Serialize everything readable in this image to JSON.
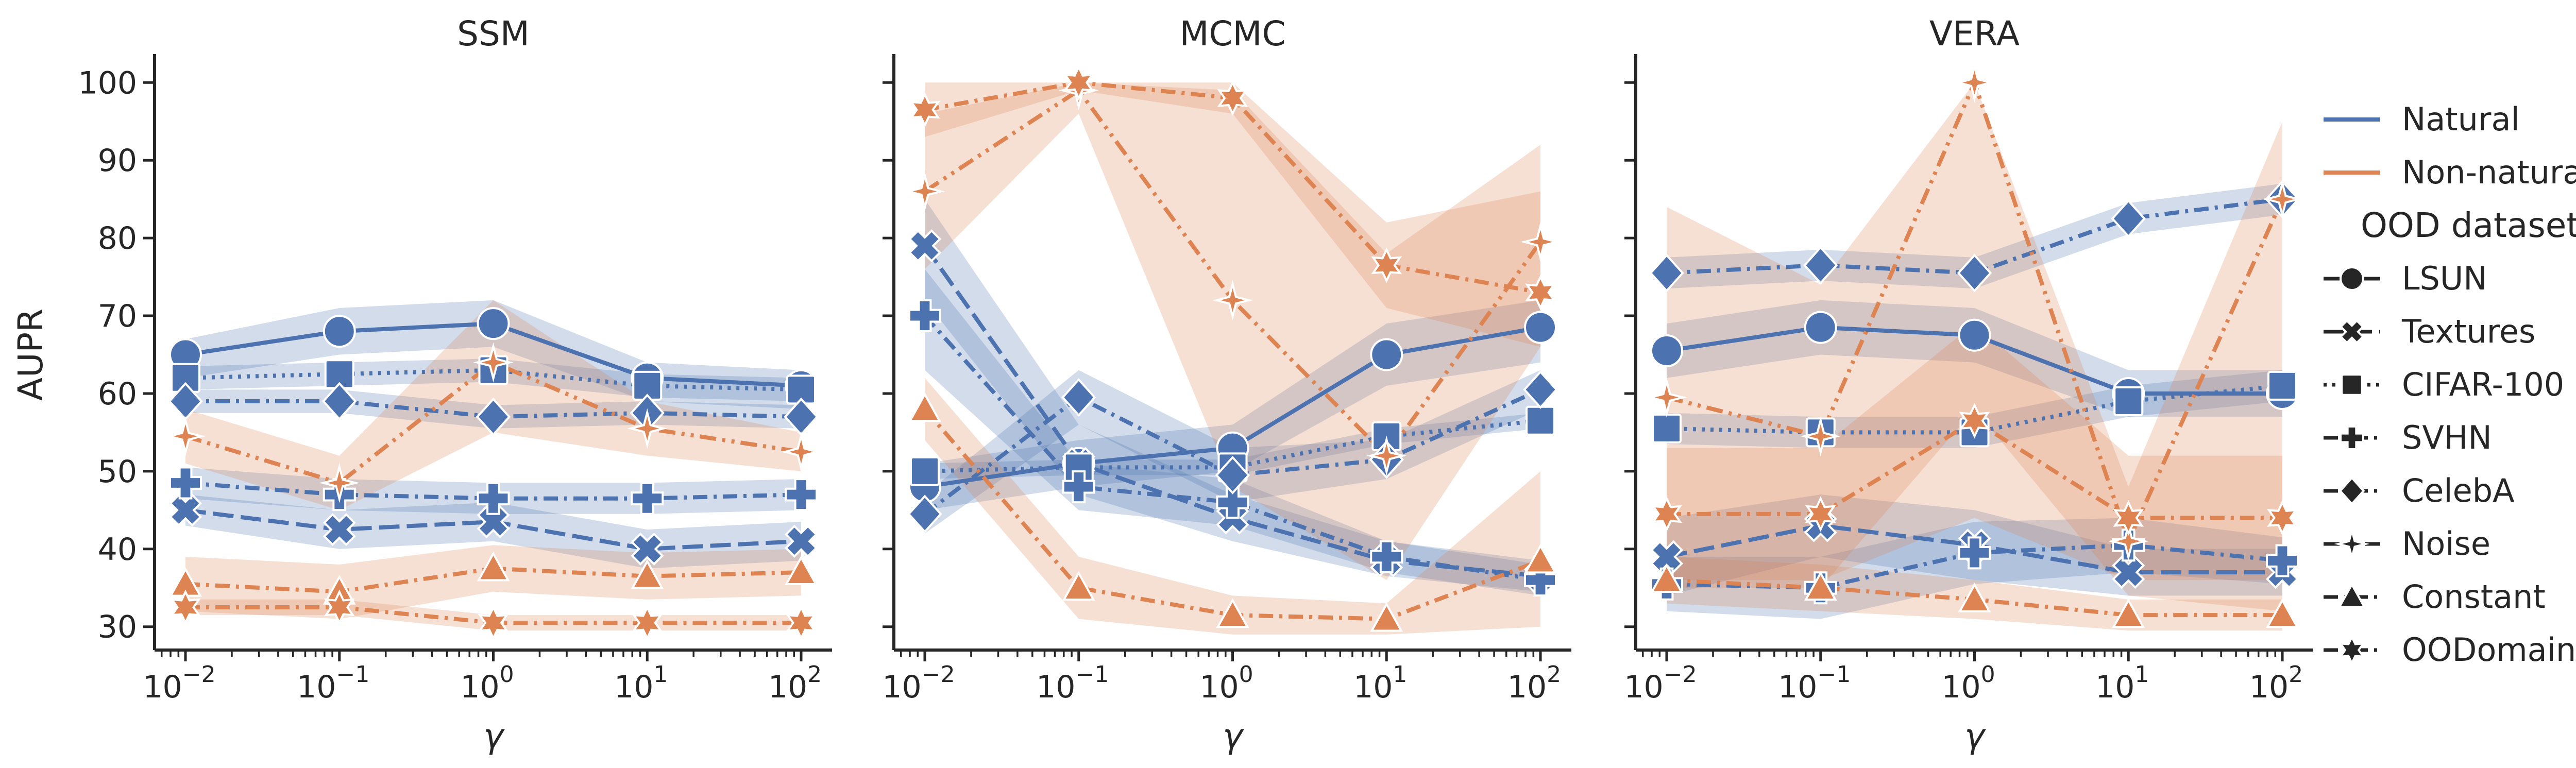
{
  "colors": {
    "Natural": "#4c72b0",
    "Non-natural": "#dd8452",
    "axis": "#262626"
  },
  "legend": {
    "hue_entries": [
      "Natural",
      "Non-natural"
    ],
    "title": "OOD dataset",
    "style_entries": [
      "LSUN",
      "Textures",
      "CIFAR-100",
      "SVHN",
      "CelebA",
      "Noise",
      "Constant",
      "OODomain"
    ]
  },
  "chart_data": [
    {
      "type": "line",
      "title": "SSM",
      "xlabel": "γ",
      "ylabel": "AUPR",
      "xscale": "log",
      "x": [
        0.01,
        0.1,
        1,
        10,
        100
      ],
      "x_tick_labels": [
        {
          "base": "10",
          "exp": "−2"
        },
        {
          "base": "10",
          "exp": "−1"
        },
        {
          "base": "10",
          "exp": "0"
        },
        {
          "base": "10",
          "exp": "1"
        },
        {
          "base": "10",
          "exp": "2"
        }
      ],
      "ylim": [
        27,
        103
      ],
      "y_ticks": [
        30,
        40,
        50,
        60,
        70,
        80,
        90,
        100
      ],
      "series": [
        {
          "name": "LSUN",
          "hue": "Natural",
          "values": [
            65,
            68,
            69,
            62,
            61
          ],
          "lower": [
            62,
            65,
            66,
            59,
            58
          ],
          "upper": [
            67,
            71,
            72,
            64,
            63
          ]
        },
        {
          "name": "Textures",
          "hue": "Natural",
          "values": [
            45,
            42.5,
            43.5,
            40,
            41
          ],
          "lower": [
            43,
            40,
            41,
            37.5,
            38.5
          ],
          "upper": [
            47,
            45,
            46,
            42.5,
            43.5
          ]
        },
        {
          "name": "CIFAR-100",
          "hue": "Natural",
          "values": [
            62,
            62.5,
            63,
            61,
            60.5
          ],
          "lower": [
            60.5,
            61,
            61.5,
            59.5,
            59
          ],
          "upper": [
            63.5,
            64,
            64.5,
            62.5,
            62
          ]
        },
        {
          "name": "SVHN",
          "hue": "Natural",
          "values": [
            48.5,
            47,
            46.5,
            46.5,
            47
          ],
          "lower": [
            46.5,
            45,
            44.5,
            44.5,
            45
          ],
          "upper": [
            50.5,
            49,
            48.5,
            48.5,
            49
          ]
        },
        {
          "name": "CelebA",
          "hue": "Natural",
          "values": [
            59,
            59,
            57,
            57.5,
            57
          ],
          "lower": [
            57.5,
            57.5,
            55.5,
            56,
            55.5
          ],
          "upper": [
            60.5,
            60.5,
            58.5,
            59,
            58.5
          ]
        },
        {
          "name": "Noise",
          "hue": "Non-natural",
          "values": [
            54.5,
            48.5,
            64,
            55.5,
            52.5
          ],
          "lower": [
            51,
            45,
            55,
            52,
            50
          ],
          "upper": [
            58,
            52,
            72,
            59,
            55
          ]
        },
        {
          "name": "Constant",
          "hue": "Non-natural",
          "values": [
            35.5,
            34.5,
            37.5,
            36.5,
            37
          ],
          "lower": [
            32,
            31,
            34.5,
            33.5,
            34
          ],
          "upper": [
            39,
            38,
            40.5,
            39.5,
            40
          ]
        },
        {
          "name": "OODomain",
          "hue": "Non-natural",
          "values": [
            32.5,
            32.5,
            30.5,
            30.5,
            30.5
          ],
          "lower": [
            31.5,
            31.5,
            29.5,
            29.5,
            29.5
          ],
          "upper": [
            33.5,
            33.5,
            31.5,
            31.5,
            31.5
          ]
        }
      ]
    },
    {
      "type": "line",
      "title": "MCMC",
      "xlabel": "γ",
      "ylabel": "",
      "xscale": "log",
      "x": [
        0.01,
        0.1,
        1,
        10,
        100
      ],
      "x_tick_labels": [
        {
          "base": "10",
          "exp": "−2"
        },
        {
          "base": "10",
          "exp": "−1"
        },
        {
          "base": "10",
          "exp": "0"
        },
        {
          "base": "10",
          "exp": "1"
        },
        {
          "base": "10",
          "exp": "2"
        }
      ],
      "ylim": [
        27,
        103
      ],
      "y_ticks": [
        30,
        40,
        50,
        60,
        70,
        80,
        90,
        100
      ],
      "series": [
        {
          "name": "LSUN",
          "hue": "Natural",
          "values": [
            48,
            51,
            53,
            65,
            68.5
          ],
          "lower": [
            45,
            48,
            50,
            61,
            64
          ],
          "upper": [
            51,
            54,
            56,
            69,
            72
          ]
        },
        {
          "name": "Textures",
          "hue": "Natural",
          "values": [
            79,
            51,
            44,
            38.5,
            36.5
          ],
          "lower": [
            72,
            47,
            41,
            36.5,
            34.5
          ],
          "upper": [
            85,
            56,
            47,
            41,
            38.5
          ]
        },
        {
          "name": "CIFAR-100",
          "hue": "Natural",
          "values": [
            50,
            50.5,
            50.5,
            54.5,
            56.5
          ],
          "lower": [
            49,
            49.5,
            49.5,
            53.5,
            55.5
          ],
          "upper": [
            51,
            51.5,
            51.5,
            55.5,
            57.5
          ]
        },
        {
          "name": "SVHN",
          "hue": "Natural",
          "values": [
            70,
            48,
            46,
            39,
            36
          ],
          "lower": [
            63,
            45,
            43,
            37,
            34
          ],
          "upper": [
            76,
            51,
            49,
            41,
            38
          ]
        },
        {
          "name": "CelebA",
          "hue": "Natural",
          "values": [
            44.5,
            59.5,
            49.5,
            51.5,
            60.5
          ],
          "lower": [
            42,
            56,
            46,
            49,
            58
          ],
          "upper": [
            47,
            63,
            53,
            54,
            63
          ]
        },
        {
          "name": "Noise",
          "hue": "Non-natural",
          "values": [
            86,
            99,
            72,
            52,
            79.5
          ],
          "lower": [
            76,
            96,
            48,
            36,
            66
          ],
          "upper": [
            96,
            100,
            99,
            78,
            92
          ]
        },
        {
          "name": "Constant",
          "hue": "Non-natural",
          "values": [
            58,
            35,
            31.5,
            31,
            38.5
          ],
          "lower": [
            54,
            31,
            29,
            29,
            30
          ],
          "upper": [
            62,
            39,
            34,
            33,
            50
          ]
        },
        {
          "name": "OODomain",
          "hue": "Non-natural",
          "values": [
            96.5,
            100,
            98,
            76.5,
            73
          ],
          "lower": [
            93,
            99,
            96,
            71,
            66
          ],
          "upper": [
            100,
            100,
            100,
            82,
            86
          ]
        }
      ]
    },
    {
      "type": "line",
      "title": "VERA",
      "xlabel": "γ",
      "ylabel": "",
      "xscale": "log",
      "x": [
        0.01,
        0.1,
        1,
        10,
        100
      ],
      "x_tick_labels": [
        {
          "base": "10",
          "exp": "−2"
        },
        {
          "base": "10",
          "exp": "−1"
        },
        {
          "base": "10",
          "exp": "0"
        },
        {
          "base": "10",
          "exp": "1"
        },
        {
          "base": "10",
          "exp": "2"
        }
      ],
      "ylim": [
        27,
        103
      ],
      "y_ticks": [
        30,
        40,
        50,
        60,
        70,
        80,
        90,
        100
      ],
      "series": [
        {
          "name": "LSUN",
          "hue": "Natural",
          "values": [
            65.5,
            68.5,
            67.5,
            60,
            60
          ],
          "lower": [
            62,
            65,
            64,
            57,
            57
          ],
          "upper": [
            69,
            72,
            71,
            63,
            63
          ]
        },
        {
          "name": "Textures",
          "hue": "Natural",
          "values": [
            39,
            43,
            40.5,
            37,
            37
          ],
          "lower": [
            34,
            39,
            36,
            34,
            34
          ],
          "upper": [
            44,
            47,
            45,
            40,
            40
          ]
        },
        {
          "name": "CIFAR-100",
          "hue": "Natural",
          "values": [
            55.5,
            55,
            55,
            59,
            61
          ],
          "lower": [
            53.5,
            53,
            53,
            57,
            59
          ],
          "upper": [
            57.5,
            57,
            57,
            61,
            63
          ]
        },
        {
          "name": "SVHN",
          "hue": "Natural",
          "values": [
            35.5,
            35,
            39.5,
            40.5,
            38.5
          ],
          "lower": [
            32,
            31,
            35.5,
            37,
            35.5
          ],
          "upper": [
            39,
            39,
            43.5,
            44,
            41.5
          ]
        },
        {
          "name": "CelebA",
          "hue": "Natural",
          "values": [
            75.5,
            76.5,
            75.5,
            82.5,
            85
          ],
          "lower": [
            73.5,
            74.5,
            73.5,
            80.5,
            83
          ],
          "upper": [
            77.5,
            78.5,
            77.5,
            84.5,
            87
          ]
        },
        {
          "name": "Noise",
          "hue": "Non-natural",
          "values": [
            59.5,
            54.5,
            100,
            41,
            85
          ],
          "lower": [
            35,
            35,
            58,
            34,
            32
          ],
          "upper": [
            84,
            74,
            100,
            48,
            95
          ]
        },
        {
          "name": "Constant",
          "hue": "Non-natural",
          "values": [
            36,
            35,
            33.5,
            31.5,
            31.5
          ],
          "lower": [
            33,
            32,
            31,
            29.5,
            29.5
          ],
          "upper": [
            39,
            38,
            36,
            33.5,
            33.5
          ]
        },
        {
          "name": "OODomain",
          "hue": "Non-natural",
          "values": [
            44.5,
            44.5,
            56.5,
            44,
            44
          ],
          "lower": [
            36,
            36,
            44,
            36,
            36
          ],
          "upper": [
            53,
            53,
            69,
            52,
            52
          ]
        }
      ]
    }
  ]
}
